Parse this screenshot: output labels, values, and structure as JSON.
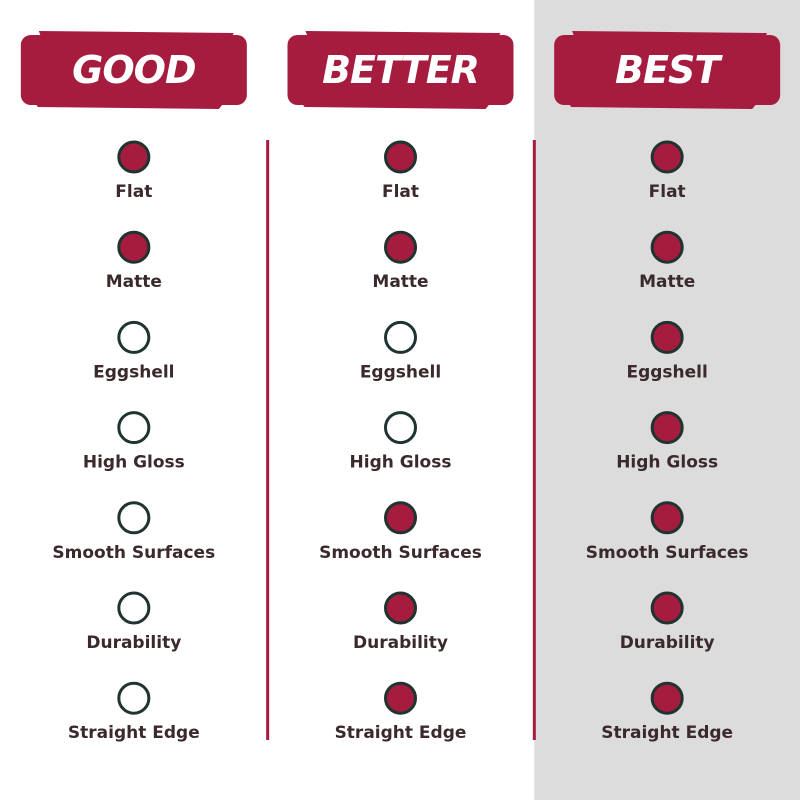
{
  "columns": [
    {
      "title": "GOOD",
      "highlighted": false,
      "features": [
        {
          "label": "Flat",
          "checked": true
        },
        {
          "label": "Matte",
          "checked": true
        },
        {
          "label": "Eggshell",
          "checked": false
        },
        {
          "label": "High Gloss",
          "checked": false
        },
        {
          "label": "Smooth Surfaces",
          "checked": false
        },
        {
          "label": "Durability",
          "checked": false
        },
        {
          "label": "Straight Edge",
          "checked": false
        }
      ]
    },
    {
      "title": "BETTER",
      "highlighted": false,
      "features": [
        {
          "label": "Flat",
          "checked": true
        },
        {
          "label": "Matte",
          "checked": true
        },
        {
          "label": "Eggshell",
          "checked": false
        },
        {
          "label": "High Gloss",
          "checked": false
        },
        {
          "label": "Smooth Surfaces",
          "checked": true
        },
        {
          "label": "Durability",
          "checked": true
        },
        {
          "label": "Straight Edge",
          "checked": true
        }
      ]
    },
    {
      "title": "BEST",
      "highlighted": true,
      "features": [
        {
          "label": "Flat",
          "checked": true
        },
        {
          "label": "Matte",
          "checked": true
        },
        {
          "label": "Eggshell",
          "checked": true
        },
        {
          "label": "High Gloss",
          "checked": true
        },
        {
          "label": "Smooth Surfaces",
          "checked": true
        },
        {
          "label": "Durability",
          "checked": true
        },
        {
          "label": "Straight Edge",
          "checked": true
        }
      ]
    }
  ]
}
